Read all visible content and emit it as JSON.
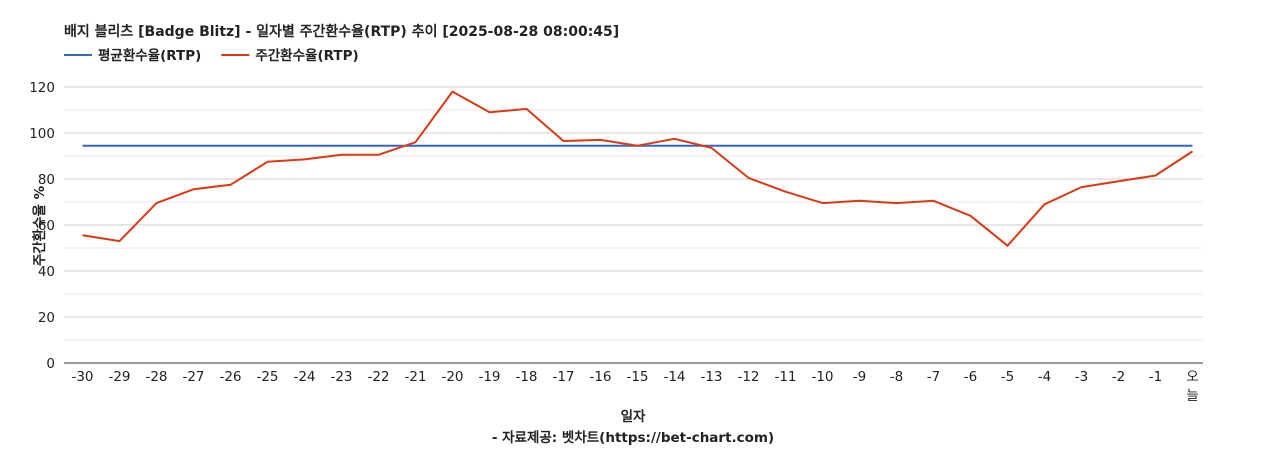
{
  "chart_data": {
    "type": "line",
    "title": "배지 블리츠 [Badge Blitz] - 일자별 주간환수율(RTP) 추이 [2025-08-28 08:00:45]",
    "xlabel": "일자",
    "ylabel": "주간환수율 %",
    "credit": "- 자료제공: 벳차트(https://bet-chart.com)",
    "ylim": [
      0,
      120
    ],
    "yticks": [
      "0",
      "20",
      "40",
      "60",
      "80",
      "100",
      "120"
    ],
    "grid": true,
    "legend_position": "top-left",
    "categories": [
      "-30",
      "-29",
      "-28",
      "-27",
      "-26",
      "-25",
      "-24",
      "-23",
      "-22",
      "-21",
      "-20",
      "-19",
      "-18",
      "-17",
      "-16",
      "-15",
      "-14",
      "-13",
      "-12",
      "-11",
      "-10",
      "-9",
      "-8",
      "-7",
      "-6",
      "-5",
      "-4",
      "-3",
      "-2",
      "-1",
      "오늘"
    ],
    "series": [
      {
        "name": "평균환수율(RTP)",
        "color": "#3366cc",
        "values": [
          94.5,
          94.5,
          94.5,
          94.5,
          94.5,
          94.5,
          94.5,
          94.5,
          94.5,
          94.5,
          94.5,
          94.5,
          94.5,
          94.5,
          94.5,
          94.5,
          94.5,
          94.5,
          94.5,
          94.5,
          94.5,
          94.5,
          94.5,
          94.5,
          94.5,
          94.5,
          94.5,
          94.5,
          94.5,
          94.5,
          94.5
        ]
      },
      {
        "name": "주간환수율(RTP)",
        "color": "#dc3912",
        "values": [
          55.5,
          53,
          69.5,
          75.5,
          77.5,
          87.5,
          88.5,
          90.5,
          90.5,
          96,
          118,
          109,
          110.5,
          96.5,
          97,
          94.5,
          97.5,
          93.5,
          80.5,
          74.5,
          69.5,
          70.5,
          69.5,
          70.5,
          64,
          51,
          69,
          76.5,
          79,
          81.5,
          92
        ]
      }
    ]
  }
}
